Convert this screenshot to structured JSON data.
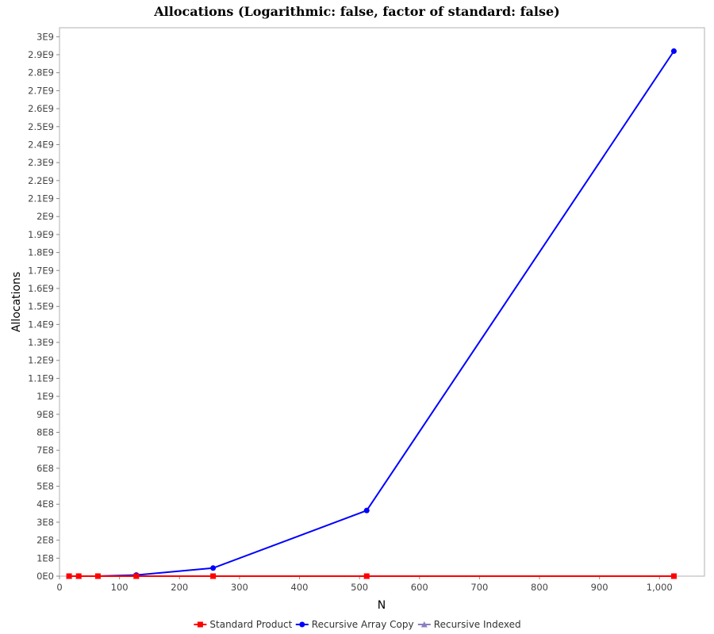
{
  "chart_data": {
    "type": "line",
    "title": "Allocations (Logarithmic: false, factor of standard: false)",
    "xlabel": "N",
    "ylabel": "Allocations",
    "xlim": [
      0,
      1075
    ],
    "ylim": [
      0,
      3050000000
    ],
    "x_ticks": [
      0,
      100,
      200,
      300,
      400,
      500,
      600,
      700,
      800,
      900,
      1000
    ],
    "x_tick_labels": [
      "0",
      "100",
      "200",
      "300",
      "400",
      "500",
      "600",
      "700",
      "800",
      "900",
      "1,000"
    ],
    "y_ticks": [
      0,
      100000000,
      200000000,
      300000000,
      400000000,
      500000000,
      600000000,
      700000000,
      800000000,
      900000000,
      1000000000,
      1100000000,
      1200000000,
      1300000000,
      1400000000,
      1500000000,
      1600000000,
      1700000000,
      1800000000,
      1900000000,
      2000000000,
      2100000000,
      2200000000,
      2300000000,
      2400000000,
      2500000000,
      2600000000,
      2700000000,
      2800000000,
      2900000000,
      3000000000
    ],
    "y_tick_labels": [
      "0E0",
      "1E8",
      "2E8",
      "3E8",
      "4E8",
      "5E8",
      "6E8",
      "7E8",
      "8E8",
      "9E8",
      "1E9",
      "1.1E9",
      "1.2E9",
      "1.3E9",
      "1.4E9",
      "1.5E9",
      "1.6E9",
      "1.7E9",
      "1.8E9",
      "1.9E9",
      "2E9",
      "2.1E9",
      "2.2E9",
      "2.3E9",
      "2.4E9",
      "2.5E9",
      "2.6E9",
      "2.7E9",
      "2.8E9",
      "2.9E9",
      "3E9"
    ],
    "grid": false,
    "legend_position": "bottom",
    "series": [
      {
        "name": "Standard Product",
        "color": "#ff0000",
        "marker": "square",
        "x": [
          16,
          32,
          64,
          128,
          256,
          512,
          1024
        ],
        "y": [
          0,
          0,
          0,
          0,
          0,
          0,
          0
        ]
      },
      {
        "name": "Recursive Array Copy",
        "color": "#0000ff",
        "marker": "circle",
        "x": [
          16,
          32,
          64,
          128,
          256,
          512,
          1024
        ],
        "y": [
          0,
          0,
          0,
          6000000,
          45000000,
          365000000,
          2920000000
        ]
      },
      {
        "name": "Recursive Indexed",
        "color": "#8c7fbf",
        "marker": "triangle",
        "x": [
          16,
          32,
          64,
          128,
          256,
          512,
          1024
        ],
        "y": [
          0,
          0,
          0,
          0,
          0,
          0,
          0
        ]
      }
    ]
  }
}
